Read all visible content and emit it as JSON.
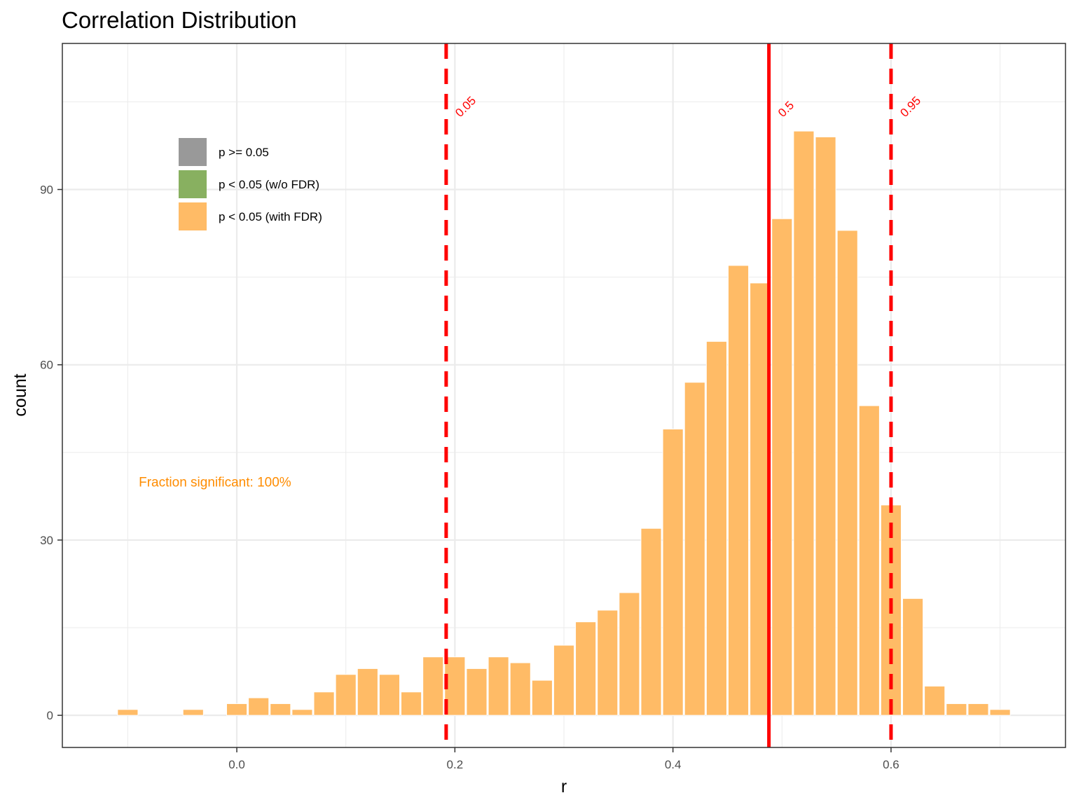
{
  "chart_data": {
    "type": "bar",
    "title": "Correlation Distribution",
    "xlabel": "r",
    "ylabel": "count",
    "xlim": [
      -0.16,
      0.76
    ],
    "ylim": [
      -5.5,
      115
    ],
    "bin_width": 0.02,
    "x_ticks": [
      0.0,
      0.2,
      0.4,
      0.6
    ],
    "x_tick_labels": [
      "0.0",
      "0.2",
      "0.4",
      "0.6"
    ],
    "y_ticks": [
      0,
      30,
      60,
      90
    ],
    "y_tick_labels": [
      "0",
      "30",
      "60",
      "90"
    ],
    "x_minor_ticks": [
      -0.1,
      0.1,
      0.3,
      0.5,
      0.7
    ],
    "y_minor_ticks": [
      15,
      45,
      75,
      105
    ],
    "grid": true,
    "bars": [
      {
        "x": -0.1,
        "count": 1
      },
      {
        "x": -0.04,
        "count": 1
      },
      {
        "x": 0.0,
        "count": 2
      },
      {
        "x": 0.02,
        "count": 3
      },
      {
        "x": 0.04,
        "count": 2
      },
      {
        "x": 0.06,
        "count": 1
      },
      {
        "x": 0.08,
        "count": 4
      },
      {
        "x": 0.1,
        "count": 7
      },
      {
        "x": 0.12,
        "count": 8
      },
      {
        "x": 0.14,
        "count": 7
      },
      {
        "x": 0.16,
        "count": 4
      },
      {
        "x": 0.18,
        "count": 10
      },
      {
        "x": 0.2,
        "count": 10
      },
      {
        "x": 0.22,
        "count": 8
      },
      {
        "x": 0.24,
        "count": 10
      },
      {
        "x": 0.26,
        "count": 9
      },
      {
        "x": 0.28,
        "count": 6
      },
      {
        "x": 0.3,
        "count": 12
      },
      {
        "x": 0.32,
        "count": 16
      },
      {
        "x": 0.34,
        "count": 18
      },
      {
        "x": 0.36,
        "count": 21
      },
      {
        "x": 0.38,
        "count": 32
      },
      {
        "x": 0.4,
        "count": 49
      },
      {
        "x": 0.42,
        "count": 57
      },
      {
        "x": 0.44,
        "count": 64
      },
      {
        "x": 0.46,
        "count": 77
      },
      {
        "x": 0.48,
        "count": 74
      },
      {
        "x": 0.5,
        "count": 85
      },
      {
        "x": 0.52,
        "count": 100
      },
      {
        "x": 0.54,
        "count": 99
      },
      {
        "x": 0.56,
        "count": 83
      },
      {
        "x": 0.58,
        "count": 53
      },
      {
        "x": 0.6,
        "count": 36
      },
      {
        "x": 0.62,
        "count": 20
      },
      {
        "x": 0.64,
        "count": 5
      },
      {
        "x": 0.66,
        "count": 2
      },
      {
        "x": 0.68,
        "count": 2
      },
      {
        "x": 0.7,
        "count": 1
      }
    ],
    "quantile_lines": [
      {
        "label": "0.05",
        "x": 0.192,
        "style": "dashed"
      },
      {
        "label": "0.5",
        "x": 0.488,
        "style": "solid"
      },
      {
        "label": "0.95",
        "x": 0.6,
        "style": "dashed"
      }
    ],
    "legend": {
      "placement": "top-left",
      "entries": [
        {
          "label": "p >= 0.05",
          "color": "#999999"
        },
        {
          "label": "p < 0.05 (w/o FDR)",
          "color": "#88b060"
        },
        {
          "label": "p < 0.05 (with FDR)",
          "color": "#ffbb66"
        }
      ]
    },
    "annotation": {
      "text": "Fraction significant: 100%",
      "color": "#ff8c00",
      "x": -0.02,
      "y": 40
    },
    "colors": {
      "bar": "#ffbb66",
      "quantile_line": "#ff0000",
      "grid": "#ebebeb",
      "panel_border": "#333333"
    }
  }
}
